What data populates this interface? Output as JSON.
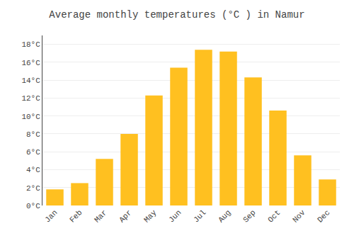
{
  "chart_data": {
    "type": "bar",
    "title": "Average monthly temperatures (°C ) in Namur",
    "categories": [
      "Jan",
      "Feb",
      "Mar",
      "Apr",
      "May",
      "Jun",
      "Jul",
      "Aug",
      "Sep",
      "Oct",
      "Nov",
      "Dec"
    ],
    "values": [
      1.8,
      2.5,
      5.2,
      8.0,
      12.3,
      15.4,
      17.4,
      17.2,
      14.3,
      10.6,
      5.6,
      2.9
    ],
    "color": "#FFC020",
    "ylim": [
      0,
      19
    ],
    "yticks": [
      {
        "value": 0,
        "label": "0°C"
      },
      {
        "value": 2,
        "label": "2°C"
      },
      {
        "value": 4,
        "label": "4°C"
      },
      {
        "value": 6,
        "label": "6°C"
      },
      {
        "value": 8,
        "label": "8°C"
      },
      {
        "value": 10,
        "label": "10°C"
      },
      {
        "value": 12,
        "label": "12°C"
      },
      {
        "value": 14,
        "label": "14°C"
      },
      {
        "value": 16,
        "label": "16°C"
      },
      {
        "value": 18,
        "label": "18°C"
      }
    ],
    "grid": true
  }
}
